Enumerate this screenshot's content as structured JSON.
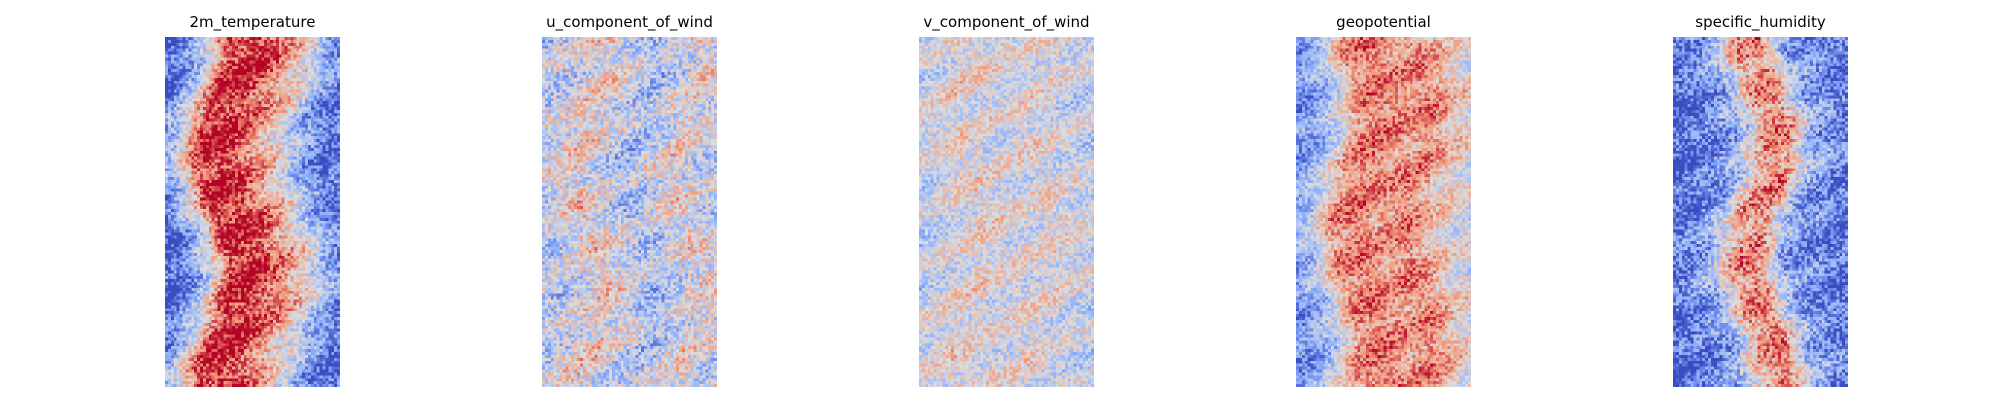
{
  "chart_data": [
    {
      "type": "heatmap",
      "title": "2m_temperature",
      "colormap": "coolwarm",
      "axes": "off",
      "grid": false,
      "legend": "none",
      "pattern": {
        "columns": 60,
        "rows": 120,
        "band": [
          -0.85,
          -0.2,
          0.85,
          0.9,
          0.55,
          0.15,
          -0.45,
          -0.8
        ],
        "waviness": 0.18,
        "noise": 0.38,
        "seed": 11
      }
    },
    {
      "type": "heatmap",
      "title": "u_component_of_wind",
      "colormap": "coolwarm",
      "axes": "off",
      "grid": false,
      "legend": "none",
      "pattern": {
        "columns": 60,
        "rows": 120,
        "band": [
          -0.2,
          -0.05,
          0.15,
          -0.1,
          -0.3,
          -0.1,
          0.1,
          -0.15
        ],
        "waviness": 0.2,
        "noise": 0.45,
        "seed": 23
      }
    },
    {
      "type": "heatmap",
      "title": "v_component_of_wind",
      "colormap": "coolwarm",
      "axes": "off",
      "grid": false,
      "legend": "none",
      "pattern": {
        "columns": 60,
        "rows": 120,
        "band": [
          -0.15,
          -0.05,
          0.1,
          0.0,
          -0.05,
          0.05,
          -0.05,
          -0.15
        ],
        "waviness": 0.2,
        "noise": 0.35,
        "seed": 37
      }
    },
    {
      "type": "heatmap",
      "title": "geopotential",
      "colormap": "coolwarm",
      "axes": "off",
      "grid": false,
      "legend": "none",
      "pattern": {
        "columns": 60,
        "rows": 120,
        "band": [
          -0.6,
          -0.25,
          0.5,
          0.6,
          0.45,
          0.55,
          0.2,
          0.0
        ],
        "waviness": 0.15,
        "noise": 0.35,
        "seed": 53
      }
    },
    {
      "type": "heatmap",
      "title": "specific_humidity",
      "colormap": "coolwarm",
      "axes": "off",
      "grid": false,
      "legend": "none",
      "pattern": {
        "columns": 60,
        "rows": 120,
        "band": [
          -0.85,
          -0.7,
          -0.45,
          0.4,
          0.55,
          -0.45,
          -0.65,
          -0.8
        ],
        "waviness": 0.18,
        "noise": 0.42,
        "seed": 71
      }
    }
  ]
}
